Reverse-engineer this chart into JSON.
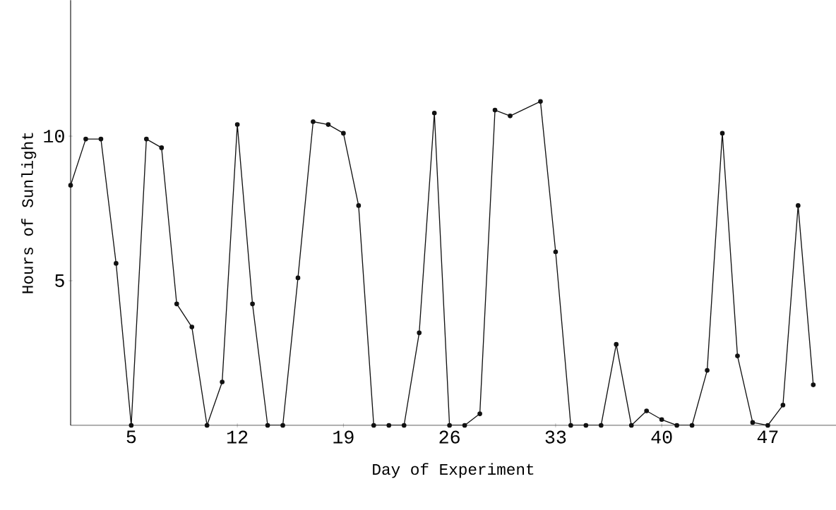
{
  "chart_data": {
    "type": "line",
    "xlabel": "Day of Experiment",
    "ylabel": "Hours of Sunlight",
    "x": [
      1,
      2,
      3,
      4,
      5,
      6,
      7,
      8,
      9,
      10,
      11,
      12,
      13,
      14,
      15,
      16,
      17,
      18,
      19,
      20,
      21,
      22,
      23,
      24,
      25,
      26,
      27,
      28,
      29,
      30,
      32,
      33,
      34,
      35,
      36,
      37,
      38,
      39,
      40,
      41,
      42,
      43,
      44,
      45,
      46,
      47,
      48,
      49,
      50
    ],
    "series": [
      {
        "color": "#111111",
        "values": [
          8.3,
          9.9,
          9.9,
          5.6,
          0,
          9.9,
          9.6,
          4.2,
          3.4,
          0,
          1.5,
          10.4,
          4.2,
          0,
          0,
          5.1,
          10.5,
          10.4,
          10.1,
          7.6,
          0,
          0,
          0,
          3.2,
          10.8,
          0,
          0,
          0.4,
          10.9,
          10.7,
          11.2,
          6.0,
          0,
          0,
          0,
          2.8,
          0,
          0.5,
          0.2,
          0,
          0,
          1.9,
          10.1,
          2.4,
          0.1,
          0,
          0.7,
          7.6,
          1.4
        ]
      }
    ],
    "xlim": [
      1,
      51.5
    ],
    "ylim": [
      0,
      14.7
    ],
    "xticks": [
      5,
      12,
      19,
      26,
      33,
      40,
      47
    ],
    "yticks": [
      5,
      10
    ],
    "marker": "circle",
    "line_style": "solid",
    "grid": false
  }
}
